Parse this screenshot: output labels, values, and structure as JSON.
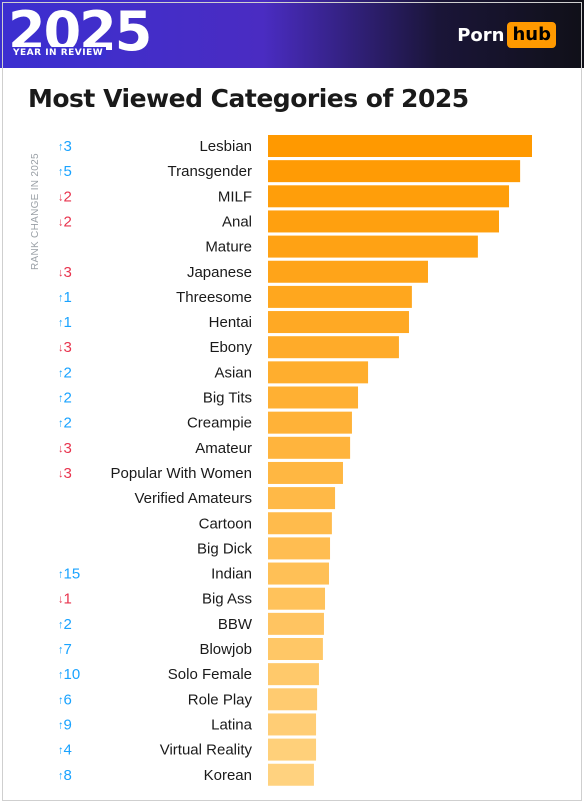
{
  "header": {
    "year": "2025",
    "subtitle": "YEAR IN REVIEW",
    "logo_text": "Porn",
    "logo_badge": "hub"
  },
  "rank_change_label": "RANK CHANGE IN 2025",
  "colors": {
    "bar_top": "#ff9900",
    "bar_bottom": "#ffd27f",
    "up": "#1aa3ff",
    "down": "#e8344e"
  },
  "chart_data": {
    "type": "bar",
    "orientation": "horizontal",
    "title": "Most Viewed Categories of 2025",
    "xlim": [
      0,
      100
    ],
    "categories": [
      "Lesbian",
      "Transgender",
      "MILF",
      "Anal",
      "Mature",
      "Japanese",
      "Threesome",
      "Hentai",
      "Ebony",
      "Asian",
      "Big Tits",
      "Creampie",
      "Amateur",
      "Popular With Women",
      "Verified Amateurs",
      "Cartoon",
      "Big Dick",
      "Indian",
      "Big Ass",
      "BBW",
      "Blowjob",
      "Solo Female",
      "Role Play",
      "Latina",
      "Virtual Reality",
      "Korean"
    ],
    "values": [
      100,
      95.5,
      91.3,
      87.5,
      79.5,
      60.6,
      54.5,
      53.4,
      49.6,
      37.9,
      34.1,
      31.8,
      31.1,
      28.4,
      25.4,
      24.2,
      23.5,
      23.1,
      21.6,
      21.2,
      20.8,
      19.3,
      18.6,
      18.2,
      18.2,
      17.4
    ],
    "rank_change": [
      {
        "dir": "up",
        "text": "3"
      },
      {
        "dir": "up",
        "text": "5"
      },
      {
        "dir": "down",
        "text": "2"
      },
      {
        "dir": "down",
        "text": "2"
      },
      null,
      {
        "dir": "down",
        "text": "3"
      },
      {
        "dir": "up",
        "text": "1"
      },
      {
        "dir": "up",
        "text": "1"
      },
      {
        "dir": "down",
        "text": "3"
      },
      {
        "dir": "up",
        "text": "2"
      },
      {
        "dir": "up",
        "text": "2"
      },
      {
        "dir": "up",
        "text": "2"
      },
      {
        "dir": "down",
        "text": "3"
      },
      {
        "dir": "down",
        "text": "3"
      },
      null,
      null,
      null,
      {
        "dir": "up",
        "text": "15"
      },
      {
        "dir": "down",
        "text": "1"
      },
      {
        "dir": "up",
        "text": "2"
      },
      {
        "dir": "up",
        "text": "7"
      },
      {
        "dir": "up",
        "text": "10"
      },
      {
        "dir": "up",
        "text": "6"
      },
      {
        "dir": "up",
        "text": "9"
      },
      {
        "dir": "up",
        "text": "4"
      },
      {
        "dir": "up",
        "text": "8"
      }
    ],
    "arrow_up": "↑",
    "arrow_down": "↓"
  }
}
